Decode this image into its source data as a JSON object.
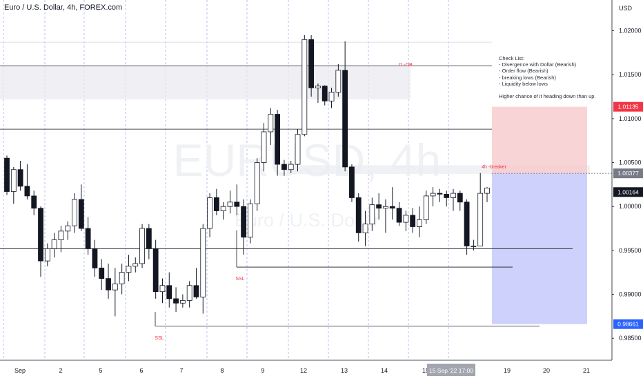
{
  "header": {
    "title": "Euro / U.S. Dollar, 4h, FOREX.com"
  },
  "watermark": {
    "symbol": "EURUSD, 4h",
    "name": "Euro / U.S. Dollar"
  },
  "chart_data": {
    "type": "candlestick",
    "currency_label": "USD",
    "y_range": [
      0.9825,
      1.0235
    ],
    "y_ticks": [
      1.02,
      1.015,
      1.01,
      1.005,
      1.0,
      0.995,
      0.99,
      0.985
    ],
    "y_tick_labels": [
      "1.02000",
      "1.01500",
      "1.01000",
      "1.00500",
      "1.00000",
      "0.99500",
      "0.99000",
      "0.98500"
    ],
    "x_ticks": [
      "Sep",
      "2",
      "5",
      "6",
      "7",
      "8",
      "9",
      "12",
      "13",
      "14",
      "15",
      "16",
      "19",
      "20",
      "21"
    ],
    "cursor_label": "15 Sep '22   17:00",
    "price_labels": [
      {
        "value": 1.01135,
        "text": "1.01135",
        "color": "#f23645"
      },
      {
        "value": 1.00377,
        "text": "1.00377",
        "color": "#787b86"
      },
      {
        "value": 1.00164,
        "text": "1.00164",
        "color": "#131722"
      },
      {
        "value": 0.98661,
        "text": "0.98661",
        "color": "#2962ff"
      }
    ],
    "annotations": [
      {
        "text": "D -OB",
        "color": "#f23645"
      },
      {
        "text": "4h -breaker",
        "color": "#f23645"
      },
      {
        "text": "SSL",
        "color": "#f23645"
      },
      {
        "text": "SSL",
        "color": "#f23645"
      }
    ],
    "checklist": "Check List:\n- Divergence with Dollar (Bearish)\n- Order flow (Bearish)\n- breaking lows (Bearish)\n- Liquidity below lows\n\nHigher chance of it heading down than up.",
    "levels": [
      1.016,
      1.0088,
      0.9952,
      0.9931,
      0.9864,
      1.0187
    ],
    "zones": [
      {
        "name": "daily-order-block",
        "top": 1.016,
        "bottom": 1.0122
      },
      {
        "name": "breaker",
        "top": 1.0047,
        "bottom": 1.0037
      }
    ],
    "position": {
      "entry": 1.00377,
      "stop": 1.01135,
      "target": 0.98661
    },
    "candles": [
      [
        1.0055,
        1.0058,
        1.0013,
        1.0017
      ],
      [
        1.0017,
        1.0045,
        1.0003,
        1.0042
      ],
      [
        1.0042,
        1.0052,
        1.0018,
        1.0023
      ],
      [
        1.0023,
        1.0048,
        1.0008,
        1.0012
      ],
      [
        1.0012,
        1.0018,
        0.999,
        0.9998
      ],
      [
        0.9998,
        1.0,
        0.992,
        0.9938
      ],
      [
        0.9938,
        0.9958,
        0.9932,
        0.9952
      ],
      [
        0.9952,
        0.997,
        0.9942,
        0.9962
      ],
      [
        0.9962,
        0.9978,
        0.9948,
        0.9972
      ],
      [
        0.9972,
        0.9983,
        0.9962,
        0.9978
      ],
      [
        0.9978,
        1.0015,
        0.997,
        1.0008
      ],
      [
        1.0008,
        1.0025,
        0.9972,
        0.9975
      ],
      [
        0.9975,
        0.9988,
        0.9945,
        0.9952
      ],
      [
        0.9952,
        0.9962,
        0.992,
        0.993
      ],
      [
        0.993,
        0.994,
        0.9905,
        0.9918
      ],
      [
        0.9918,
        0.9935,
        0.9895,
        0.9905
      ],
      [
        0.9905,
        0.993,
        0.9875,
        0.9912
      ],
      [
        0.9912,
        0.9935,
        0.99,
        0.9925
      ],
      [
        0.9925,
        0.9945,
        0.9915,
        0.9932
      ],
      [
        0.9932,
        0.9942,
        0.9925,
        0.9935
      ],
      [
        0.9935,
        0.998,
        0.993,
        0.9975
      ],
      [
        0.9975,
        0.998,
        0.994,
        0.9952
      ],
      [
        0.9952,
        0.9962,
        0.9895,
        0.9903
      ],
      [
        0.9903,
        0.9918,
        0.989,
        0.991
      ],
      [
        0.991,
        0.9925,
        0.9885,
        0.9895
      ],
      [
        0.9895,
        0.9908,
        0.988,
        0.989
      ],
      [
        0.989,
        0.99,
        0.9885,
        0.9893
      ],
      [
        0.9893,
        0.9915,
        0.9885,
        0.991
      ],
      [
        0.991,
        0.993,
        0.9895,
        0.9897
      ],
      [
        0.9897,
        0.998,
        0.9878,
        0.9975
      ],
      [
        0.9975,
        1.0015,
        0.9965,
        1.001
      ],
      [
        1.001,
        1.002,
        0.999,
        0.9995
      ],
      [
        0.9995,
        1.0005,
        0.9985,
        1.0
      ],
      [
        1.0,
        1.0018,
        0.9992,
        1.0005
      ],
      [
        1.0005,
        1.0025,
        0.999,
        1.0
      ],
      [
        1.0,
        1.0008,
        0.9945,
        0.9965
      ],
      [
        0.9965,
        1.0008,
        0.9958,
        1.0003
      ],
      [
        1.0003,
        1.0055,
        0.9995,
        1.005
      ],
      [
        1.005,
        1.0095,
        1.004,
        1.0085
      ],
      [
        1.0085,
        1.0112,
        1.007,
        1.0105
      ],
      [
        1.0105,
        1.011,
        1.0035,
        1.0048
      ],
      [
        1.0048,
        1.0053,
        1.0035,
        1.0042
      ],
      [
        1.0042,
        1.0052,
        1.0038,
        1.0048
      ],
      [
        1.0048,
        1.0088,
        1.004,
        1.0082
      ],
      [
        1.0082,
        1.0195,
        1.008,
        1.019
      ],
      [
        1.019,
        1.0195,
        1.0125,
        1.0135
      ],
      [
        1.0135,
        1.014,
        1.0118,
        1.0137
      ],
      [
        1.0137,
        1.0138,
        1.0115,
        1.012
      ],
      [
        1.012,
        1.0135,
        1.0112,
        1.013
      ],
      [
        1.013,
        1.0162,
        1.0125,
        1.0155
      ],
      [
        1.0155,
        1.0188,
        1.004,
        1.0045
      ],
      [
        1.0045,
        1.0048,
        1.0005,
        1.001
      ],
      [
        1.001,
        1.0015,
        0.996,
        0.997
      ],
      [
        0.997,
        0.9995,
        0.9955,
        0.998
      ],
      [
        0.998,
        1.001,
        0.9972,
        1.0002
      ],
      [
        1.0002,
        1.0015,
        0.9985,
        0.9998
      ],
      [
        0.9998,
        1.0008,
        0.997,
        1.0
      ],
      [
        1.0,
        1.0022,
        0.9985,
        0.9998
      ],
      [
        0.9998,
        1.0005,
        0.9978,
        0.9982
      ],
      [
        0.9982,
        0.9995,
        0.9972,
        0.999
      ],
      [
        0.999,
        0.9998,
        0.997,
        0.9977
      ],
      [
        0.9977,
        1.0,
        0.9965,
        0.9985
      ],
      [
        0.9985,
        1.0018,
        0.998,
        1.0012
      ],
      [
        1.0012,
        1.0022,
        1.0,
        1.0015
      ],
      [
        1.0015,
        1.002,
        1.0005,
        1.0014
      ],
      [
        1.0014,
        1.0018,
        1.0,
        1.001
      ],
      [
        1.001,
        1.002,
        0.9995,
        1.0015
      ],
      [
        1.0015,
        1.0018,
        0.9995,
        1.0005
      ],
      [
        1.0005,
        1.0008,
        0.9945,
        0.9955
      ],
      [
        0.9955,
        0.9962,
        0.995,
        0.9955
      ],
      [
        0.9955,
        1.0038,
        0.9955,
        1.0015
      ],
      [
        1.0015,
        1.0022,
        1.0005,
        1.0021
      ]
    ]
  }
}
